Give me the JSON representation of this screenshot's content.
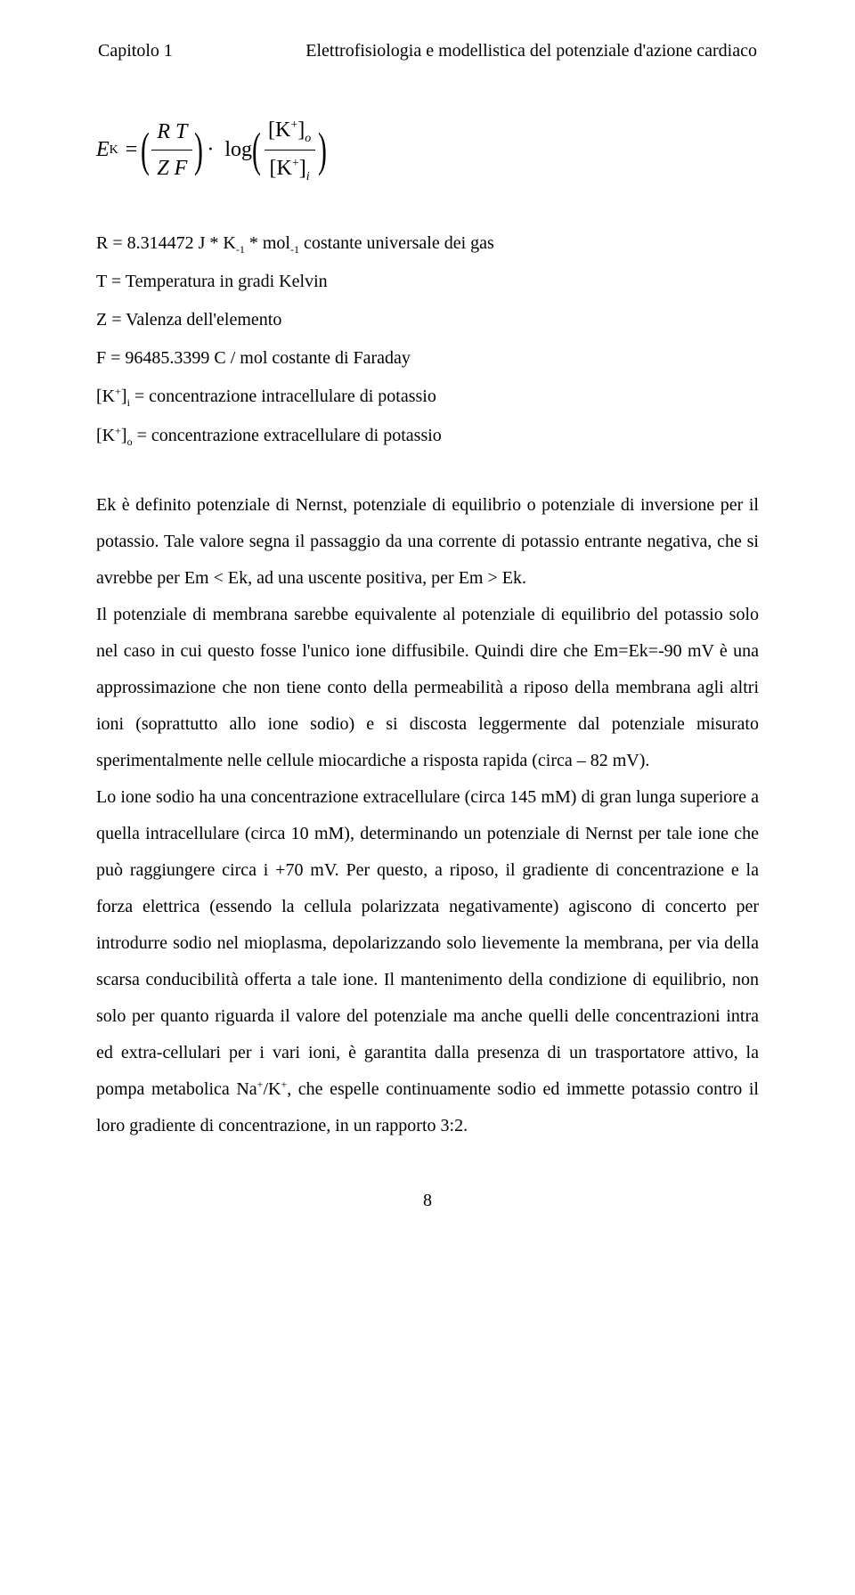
{
  "header": {
    "chapter": "Capitolo 1",
    "title": "Elettrofisiologia e modellistica del potenziale d'azione cardiaco"
  },
  "equation": {
    "lhs_var": "E",
    "lhs_sub": "K",
    "frac1_num": "R  T",
    "frac1_den": "Z  F",
    "func": "log",
    "ion_label": "K",
    "ion_charge": "+",
    "sub_o": "o",
    "sub_i": "i"
  },
  "definitions": [
    {
      "html": "R = 8.314472 J * K<span class='sub-small'>-1</span> * mol<span class='sub-small'>-1</span> costante universale dei gas"
    },
    {
      "html": "T = Temperatura in gradi Kelvin"
    },
    {
      "html": "Z = Valenza dell'elemento"
    },
    {
      "html": "F = 96485.3399 C / mol costante di Faraday"
    },
    {
      "html": "[K<span class='sup-small'>+</span>]<span class='sub-small'>i</span> = concentrazione intracellulare di potassio"
    },
    {
      "html": "[K<span class='sup-small'>+</span>]<span class='sub-small'>o</span> = concentrazione extracellulare di potassio"
    }
  ],
  "body": "Ek è definito potenziale di Nernst, potenziale di equilibrio o potenziale di inversione per il potassio. Tale valore segna il passaggio da una corrente di potassio entrante negativa, che si avrebbe per Em < Ek, ad una uscente positiva, per Em > Ek.<br>Il potenziale di membrana sarebbe equivalente al potenziale di equilibrio del potassio solo nel caso in cui questo fosse l'unico ione diffusibile. Quindi dire che Em=Ek=-90 mV è una approssimazione che non tiene conto della permeabilità a riposo della membrana agli altri ioni (soprattutto allo ione sodio) e si discosta leggermente dal potenziale misurato sperimentalmente nelle cellule miocardiche a risposta rapida (circa – 82 mV).<br>Lo ione sodio ha una concentrazione extracellulare (circa 145 mM) di gran lunga superiore a quella intracellulare (circa 10 mM), determinando un potenziale di Nernst per tale ione che può raggiungere circa  i +70 mV. Per questo, a riposo, il gradiente di concentrazione e la forza elettrica (essendo la cellula polarizzata negativamente) agiscono di concerto per introdurre sodio nel mioplasma, depolarizzando solo lievemente la membrana, per via della scarsa conducibilità offerta a tale ione. Il mantenimento della condizione di equilibrio, non solo per quanto riguarda il valore del potenziale ma anche quelli delle concentrazioni intra ed extra-cellulari per i vari ioni, è garantita dalla presenza di un trasportatore attivo, la pompa metabolica Na<span class='sup-small'>+</span>/K<span class='sup-small'>+</span>, che espelle continuamente sodio ed immette potassio contro il loro gradiente di concentrazione, in un rapporto 3:2.",
  "page_number": "8"
}
